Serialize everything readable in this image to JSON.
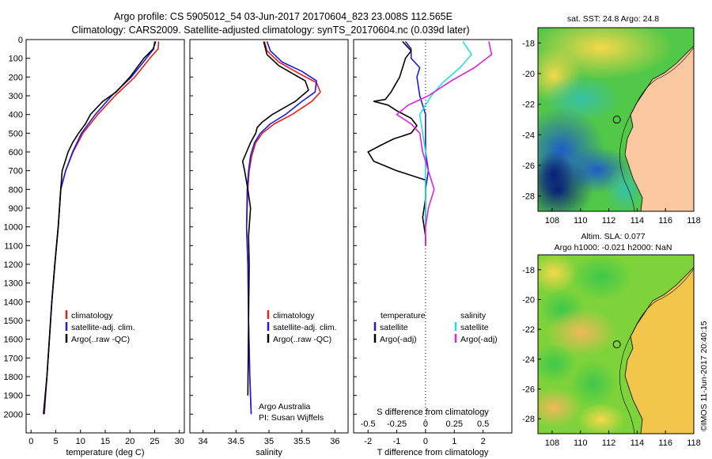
{
  "title": {
    "line1": "Argo profile: CS 5905012_54 03-Jun-2017 20170604_823 23.008S 112.565E",
    "line2": "Climatology: CARS2009. Satellite-adjusted climatology: synTS_20170604.nc (0.039d later)"
  },
  "colors": {
    "climatology": "#e8201a",
    "satellite": "#1a1ae6",
    "argo": "#000000",
    "salinity_satellite": "#22e0e0",
    "salinity_argo": "#e020e0",
    "land": "#f9c8a0"
  },
  "legend_profile": {
    "climatology": "climatology",
    "satellite": "satellite-adj. clim.",
    "argo": "Argo(..raw -QC)"
  },
  "legend_diff": {
    "temperature_header": "temperature",
    "salinity_header": "salinity",
    "satellite": "satellite",
    "argo": "Argo(-adj)"
  },
  "credit": {
    "line1": "Argo Australia",
    "line2": "PI: Susan Wijffels"
  },
  "side_stamp": "©IMOS 11-Jun-2017 20:40:15",
  "maps": {
    "sst_title": "sat. SST: 24.8 Argo: 24.8",
    "sla_title1": "Altim. SLA: 0.077",
    "sla_title2": "Argo h1000: -0.021 h2000: NaN",
    "lat_ticks": [
      "-18",
      "-20",
      "-22",
      "-24",
      "-26",
      "-28"
    ],
    "lon_ticks": [
      "108",
      "110",
      "112",
      "114",
      "116",
      "118"
    ],
    "argo_position": {
      "lon": 112.565,
      "lat": -23.008
    }
  },
  "chart_data": [
    {
      "type": "line",
      "name": "temperature profile",
      "xlabel": "temperature (deg C)",
      "ylabel": "",
      "xlim": [
        -1,
        31
      ],
      "ylim": [
        2100,
        0
      ],
      "xticks": [
        0,
        5,
        10,
        15,
        20,
        25,
        30
      ],
      "yticks": [
        0,
        100,
        200,
        300,
        400,
        500,
        600,
        700,
        800,
        900,
        1000,
        1100,
        1200,
        1300,
        1400,
        1500,
        1600,
        1700,
        1800,
        1900,
        2000
      ],
      "y_inverted": true,
      "series": [
        {
          "name": "climatology",
          "points": [
            [
              25.8,
              10
            ],
            [
              25.7,
              50
            ],
            [
              24,
              100
            ],
            [
              21,
              200
            ],
            [
              17,
              300
            ],
            [
              13.5,
              400
            ],
            [
              10.5,
              500
            ],
            [
              8.5,
              600
            ],
            [
              7,
              700
            ],
            [
              6,
              800
            ],
            [
              5.5,
              1000
            ],
            [
              4.8,
              1200
            ],
            [
              4.2,
              1400
            ],
            [
              3.7,
              1600
            ],
            [
              3.2,
              1800
            ],
            [
              2.7,
              2000
            ]
          ]
        },
        {
          "name": "satellite-adj. clim.",
          "points": [
            [
              25,
              10
            ],
            [
              24.8,
              50
            ],
            [
              23.3,
              100
            ],
            [
              20.3,
              200
            ],
            [
              16.3,
              300
            ],
            [
              13,
              400
            ],
            [
              10.2,
              500
            ],
            [
              8.4,
              600
            ],
            [
              7,
              700
            ],
            [
              6,
              800
            ],
            [
              5.5,
              1000
            ],
            [
              4.8,
              1200
            ],
            [
              4.2,
              1400
            ],
            [
              3.7,
              1600
            ],
            [
              3.2,
              1800
            ],
            [
              2.6,
              2000
            ]
          ]
        },
        {
          "name": "Argo(..raw -QC)",
          "points": [
            [
              25.2,
              10
            ],
            [
              24.7,
              50
            ],
            [
              22.8,
              100
            ],
            [
              20,
              200
            ],
            [
              17.2,
              280
            ],
            [
              14.5,
              330
            ],
            [
              12,
              400
            ],
            [
              11,
              450
            ],
            [
              9.6,
              500
            ],
            [
              8.4,
              550
            ],
            [
              7.5,
              600
            ],
            [
              6.9,
              650
            ],
            [
              6.3,
              700
            ],
            [
              6,
              800
            ],
            [
              5.5,
              1000
            ],
            [
              4.8,
              1200
            ],
            [
              4.2,
              1400
            ],
            [
              3.7,
              1600
            ],
            [
              3.2,
              1800
            ],
            [
              2.5,
              2000
            ]
          ]
        }
      ]
    },
    {
      "type": "line",
      "name": "salinity profile",
      "xlabel": "salinity",
      "ylabel": "",
      "xlim": [
        33.8,
        36.2
      ],
      "ylim": [
        2100,
        0
      ],
      "xticks": [
        34,
        34.5,
        35,
        35.5,
        36
      ],
      "xtick_labels": [
        "34",
        "34.5",
        "35",
        "35.5",
        "36"
      ],
      "y_inverted": true,
      "series": [
        {
          "name": "climatology",
          "points": [
            [
              34.93,
              10
            ],
            [
              34.97,
              60
            ],
            [
              35.15,
              120
            ],
            [
              35.45,
              180
            ],
            [
              35.72,
              230
            ],
            [
              35.78,
              280
            ],
            [
              35.65,
              330
            ],
            [
              35.35,
              400
            ],
            [
              35.08,
              450
            ],
            [
              34.9,
              500
            ],
            [
              34.8,
              550
            ],
            [
              34.74,
              620
            ],
            [
              34.7,
              700
            ],
            [
              34.68,
              800
            ],
            [
              34.66,
              1000
            ],
            [
              34.68,
              1200
            ],
            [
              34.69,
              1500
            ],
            [
              34.71,
              1800
            ],
            [
              34.73,
              2000
            ]
          ]
        },
        {
          "name": "satellite-adj. clim.",
          "points": [
            [
              34.97,
              10
            ],
            [
              35.02,
              60
            ],
            [
              35.2,
              120
            ],
            [
              35.5,
              170
            ],
            [
              35.72,
              220
            ],
            [
              35.7,
              280
            ],
            [
              35.5,
              330
            ],
            [
              35.25,
              400
            ],
            [
              35.02,
              450
            ],
            [
              34.87,
              500
            ],
            [
              34.78,
              550
            ],
            [
              34.72,
              620
            ],
            [
              34.69,
              700
            ],
            [
              34.67,
              800
            ],
            [
              34.66,
              1000
            ],
            [
              34.68,
              1200
            ],
            [
              34.69,
              1500
            ],
            [
              34.71,
              1800
            ],
            [
              34.73,
              2000
            ]
          ]
        },
        {
          "name": "Argo(..raw -QC)",
          "points": [
            [
              34.92,
              10
            ],
            [
              34.97,
              80
            ],
            [
              35.15,
              140
            ],
            [
              35.35,
              180
            ],
            [
              35.55,
              220
            ],
            [
              35.6,
              270
            ],
            [
              35.4,
              330
            ],
            [
              35.2,
              370
            ],
            [
              35.05,
              400
            ],
            [
              34.9,
              440
            ],
            [
              34.82,
              470
            ],
            [
              34.8,
              500
            ],
            [
              34.72,
              550
            ],
            [
              34.66,
              600
            ],
            [
              34.6,
              650
            ],
            [
              34.63,
              700
            ],
            [
              34.68,
              800
            ],
            [
              34.72,
              900
            ],
            [
              34.7,
              1000
            ],
            [
              34.69,
              1050
            ],
            [
              34.7,
              1200
            ],
            [
              34.69,
              1500
            ],
            [
              34.68,
              1900
            ]
          ]
        }
      ]
    },
    {
      "type": "line",
      "name": "difference from climatology",
      "xlabel": "T difference from climatology",
      "xlabel_top": "S difference from climatology",
      "xlim_T": [
        -2.5,
        3
      ],
      "xticks_T": [
        -2,
        -1,
        0,
        1,
        2
      ],
      "xticks_S": [
        -0.5,
        -0.25,
        0,
        0.25,
        0.5
      ],
      "xtick_labels_S": [
        "-0.5",
        "-0.25",
        "0",
        "0.25",
        "0.5"
      ],
      "ylim": [
        2100,
        0
      ],
      "y_inverted": true,
      "zero_line": "dotted",
      "series": [
        {
          "name": "temperature satellite",
          "points": [
            [
              -0.7,
              10
            ],
            [
              -0.5,
              50
            ],
            [
              -0.5,
              100
            ],
            [
              -0.2,
              150
            ],
            [
              -0.3,
              200
            ],
            [
              -0.2,
              300
            ],
            [
              0,
              400
            ],
            [
              0,
              500
            ],
            [
              0,
              600
            ],
            [
              0.1,
              700
            ],
            [
              0,
              800
            ],
            [
              0,
              900
            ],
            [
              0,
              1000
            ]
          ]
        },
        {
          "name": "temperature Argo(-adj)",
          "points": [
            [
              -0.8,
              10
            ],
            [
              -0.5,
              60
            ],
            [
              -0.7,
              100
            ],
            [
              -0.9,
              200
            ],
            [
              -1.2,
              280
            ],
            [
              -1.4,
              320
            ],
            [
              -1.8,
              330
            ],
            [
              -1.3,
              350
            ],
            [
              -1.0,
              380
            ],
            [
              -0.5,
              420
            ],
            [
              -0.3,
              460
            ],
            [
              -0.5,
              500
            ],
            [
              -1.1,
              530
            ],
            [
              -1.5,
              560
            ],
            [
              -2.0,
              600
            ],
            [
              -1.8,
              650
            ],
            [
              -1.0,
              700
            ],
            [
              0,
              750
            ],
            [
              0,
              850
            ],
            [
              -0.1,
              950
            ],
            [
              0,
              1050
            ],
            [
              0,
              1100
            ]
          ]
        },
        {
          "name": "salinity satellite",
          "points": [
            [
              1.3,
              10
            ],
            [
              1.6,
              80
            ],
            [
              1.2,
              150
            ],
            [
              0.6,
              230
            ],
            [
              0.2,
              300
            ],
            [
              -0.2,
              400
            ],
            [
              -0.1,
              500
            ],
            [
              0,
              600
            ],
            [
              0,
              700
            ],
            [
              0,
              800
            ],
            [
              0,
              900
            ],
            [
              0,
              1000
            ]
          ]
        },
        {
          "name": "salinity Argo(-adj)",
          "points": [
            [
              2.2,
              10
            ],
            [
              2.3,
              80
            ],
            [
              1.7,
              150
            ],
            [
              0.9,
              220
            ],
            [
              0.1,
              300
            ],
            [
              -0.6,
              350
            ],
            [
              -1.0,
              400
            ],
            [
              -0.5,
              450
            ],
            [
              -0.2,
              500
            ],
            [
              -0.1,
              600
            ],
            [
              0.1,
              700
            ],
            [
              0.3,
              800
            ],
            [
              0.1,
              900
            ],
            [
              0,
              1000
            ],
            [
              0,
              1100
            ]
          ]
        }
      ]
    }
  ]
}
